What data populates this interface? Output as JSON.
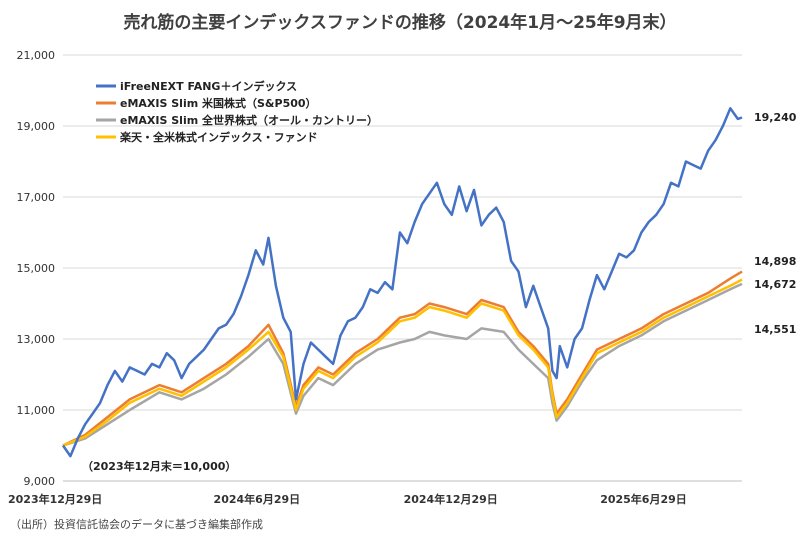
{
  "chart_data": {
    "type": "line",
    "title": "売れ筋の主要インデックスファンドの推移（2024年1月～25年9月末）",
    "ylim": [
      9000,
      21000
    ],
    "yticks": [
      "9,000",
      "11,000",
      "13,000",
      "15,000",
      "17,000",
      "19,000",
      "21,000"
    ],
    "ytick_values": [
      9000,
      11000,
      13000,
      15000,
      17000,
      19000,
      21000
    ],
    "xticks": [
      "2023年12月29日",
      "2024年6月29日",
      "2024年12月29日",
      "2025年6月29日"
    ],
    "xtick_dates": [
      "2023-12-29",
      "2024-06-29",
      "2024-12-29",
      "2025-06-29"
    ],
    "xlim": [
      "2023-12-29",
      "2025-09-30"
    ],
    "grid": "horizontal",
    "legend_position": "top-left",
    "annotation": "（2023年12月末＝10,000）",
    "series": [
      {
        "name": "iFreeNEXT FANG＋インデックス",
        "color": "#4472C4",
        "end_label": "19,240",
        "points": [
          [
            "2023-12-29",
            10000
          ],
          [
            "2024-01-05",
            9700
          ],
          [
            "2024-01-12",
            10200
          ],
          [
            "2024-01-19",
            10600
          ],
          [
            "2024-01-26",
            10900
          ],
          [
            "2024-02-02",
            11200
          ],
          [
            "2024-02-09",
            11700
          ],
          [
            "2024-02-16",
            12100
          ],
          [
            "2024-02-23",
            11800
          ],
          [
            "2024-03-01",
            12200
          ],
          [
            "2024-03-08",
            12100
          ],
          [
            "2024-03-15",
            12000
          ],
          [
            "2024-03-22",
            12300
          ],
          [
            "2024-03-29",
            12200
          ],
          [
            "2024-04-05",
            12600
          ],
          [
            "2024-04-12",
            12400
          ],
          [
            "2024-04-19",
            11900
          ],
          [
            "2024-04-26",
            12300
          ],
          [
            "2024-05-03",
            12500
          ],
          [
            "2024-05-10",
            12700
          ],
          [
            "2024-05-17",
            13000
          ],
          [
            "2024-05-24",
            13300
          ],
          [
            "2024-05-31",
            13400
          ],
          [
            "2024-06-07",
            13700
          ],
          [
            "2024-06-14",
            14200
          ],
          [
            "2024-06-21",
            14800
          ],
          [
            "2024-06-28",
            15500
          ],
          [
            "2024-07-05",
            15100
          ],
          [
            "2024-07-10",
            15850
          ],
          [
            "2024-07-17",
            14500
          ],
          [
            "2024-07-24",
            13600
          ],
          [
            "2024-07-31",
            13200
          ],
          [
            "2024-08-05",
            11300
          ],
          [
            "2024-08-12",
            12300
          ],
          [
            "2024-08-19",
            12900
          ],
          [
            "2024-08-26",
            12700
          ],
          [
            "2024-09-02",
            12500
          ],
          [
            "2024-09-09",
            12300
          ],
          [
            "2024-09-16",
            13100
          ],
          [
            "2024-09-23",
            13500
          ],
          [
            "2024-09-30",
            13600
          ],
          [
            "2024-10-07",
            13900
          ],
          [
            "2024-10-14",
            14400
          ],
          [
            "2024-10-21",
            14300
          ],
          [
            "2024-10-28",
            14600
          ],
          [
            "2024-11-04",
            14400
          ],
          [
            "2024-11-11",
            16000
          ],
          [
            "2024-11-18",
            15700
          ],
          [
            "2024-11-25",
            16300
          ],
          [
            "2024-12-02",
            16800
          ],
          [
            "2024-12-09",
            17100
          ],
          [
            "2024-12-16",
            17400
          ],
          [
            "2024-12-23",
            16800
          ],
          [
            "2024-12-30",
            16500
          ],
          [
            "2025-01-06",
            17300
          ],
          [
            "2025-01-13",
            16600
          ],
          [
            "2025-01-20",
            17200
          ],
          [
            "2025-01-27",
            16200
          ],
          [
            "2025-02-03",
            16500
          ],
          [
            "2025-02-10",
            16700
          ],
          [
            "2025-02-17",
            16300
          ],
          [
            "2025-02-24",
            15200
          ],
          [
            "2025-03-03",
            14900
          ],
          [
            "2025-03-10",
            13900
          ],
          [
            "2025-03-17",
            14500
          ],
          [
            "2025-03-24",
            13900
          ],
          [
            "2025-03-31",
            13300
          ],
          [
            "2025-04-04",
            12100
          ],
          [
            "2025-04-08",
            11900
          ],
          [
            "2025-04-11",
            12800
          ],
          [
            "2025-04-18",
            12200
          ],
          [
            "2025-04-25",
            13000
          ],
          [
            "2025-05-02",
            13300
          ],
          [
            "2025-05-09",
            14100
          ],
          [
            "2025-05-16",
            14800
          ],
          [
            "2025-05-23",
            14400
          ],
          [
            "2025-05-30",
            14900
          ],
          [
            "2025-06-06",
            15400
          ],
          [
            "2025-06-13",
            15300
          ],
          [
            "2025-06-20",
            15500
          ],
          [
            "2025-06-27",
            16000
          ],
          [
            "2025-07-04",
            16300
          ],
          [
            "2025-07-11",
            16500
          ],
          [
            "2025-07-18",
            16800
          ],
          [
            "2025-07-25",
            17400
          ],
          [
            "2025-08-01",
            17300
          ],
          [
            "2025-08-08",
            18000
          ],
          [
            "2025-08-15",
            17900
          ],
          [
            "2025-08-22",
            17800
          ],
          [
            "2025-08-29",
            18300
          ],
          [
            "2025-09-05",
            18600
          ],
          [
            "2025-09-12",
            19000
          ],
          [
            "2025-09-19",
            19500
          ],
          [
            "2025-09-26",
            19200
          ],
          [
            "2025-09-30",
            19240
          ]
        ]
      },
      {
        "name": "eMAXIS Slim 米国株式（S&P500）",
        "color": "#ED7D31",
        "end_label": "14,898",
        "points": [
          [
            "2023-12-29",
            10000
          ],
          [
            "2024-01-19",
            10300
          ],
          [
            "2024-02-09",
            10800
          ],
          [
            "2024-03-01",
            11300
          ],
          [
            "2024-03-29",
            11700
          ],
          [
            "2024-04-19",
            11500
          ],
          [
            "2024-05-10",
            11900
          ],
          [
            "2024-05-31",
            12300
          ],
          [
            "2024-06-21",
            12800
          ],
          [
            "2024-07-10",
            13400
          ],
          [
            "2024-07-24",
            12600
          ],
          [
            "2024-08-05",
            11100
          ],
          [
            "2024-08-12",
            11700
          ],
          [
            "2024-08-26",
            12200
          ],
          [
            "2024-09-09",
            12000
          ],
          [
            "2024-09-30",
            12600
          ],
          [
            "2024-10-21",
            13000
          ],
          [
            "2024-11-11",
            13600
          ],
          [
            "2024-11-25",
            13700
          ],
          [
            "2024-12-09",
            14000
          ],
          [
            "2024-12-23",
            13900
          ],
          [
            "2025-01-13",
            13700
          ],
          [
            "2025-01-27",
            14100
          ],
          [
            "2025-02-17",
            13900
          ],
          [
            "2025-03-03",
            13200
          ],
          [
            "2025-03-17",
            12800
          ],
          [
            "2025-03-31",
            12300
          ],
          [
            "2025-04-04",
            11500
          ],
          [
            "2025-04-08",
            10900
          ],
          [
            "2025-04-18",
            11300
          ],
          [
            "2025-05-02",
            12000
          ],
          [
            "2025-05-16",
            12700
          ],
          [
            "2025-06-06",
            13000
          ],
          [
            "2025-06-27",
            13300
          ],
          [
            "2025-07-18",
            13700
          ],
          [
            "2025-08-08",
            14000
          ],
          [
            "2025-08-29",
            14300
          ],
          [
            "2025-09-19",
            14700
          ],
          [
            "2025-09-30",
            14898
          ]
        ]
      },
      {
        "name": "eMAXIS Slim 全世界株式（オール・カントリー）",
        "color": "#A5A5A5",
        "end_label": "14,551",
        "points": [
          [
            "2023-12-29",
            10000
          ],
          [
            "2024-01-19",
            10200
          ],
          [
            "2024-02-09",
            10600
          ],
          [
            "2024-03-01",
            11000
          ],
          [
            "2024-03-29",
            11500
          ],
          [
            "2024-04-19",
            11300
          ],
          [
            "2024-05-10",
            11600
          ],
          [
            "2024-05-31",
            12000
          ],
          [
            "2024-06-21",
            12500
          ],
          [
            "2024-07-10",
            13000
          ],
          [
            "2024-07-24",
            12300
          ],
          [
            "2024-08-05",
            10900
          ],
          [
            "2024-08-12",
            11400
          ],
          [
            "2024-08-26",
            11900
          ],
          [
            "2024-09-09",
            11700
          ],
          [
            "2024-09-30",
            12300
          ],
          [
            "2024-10-21",
            12700
          ],
          [
            "2024-11-11",
            12900
          ],
          [
            "2024-11-25",
            13000
          ],
          [
            "2024-12-09",
            13200
          ],
          [
            "2024-12-23",
            13100
          ],
          [
            "2025-01-13",
            13000
          ],
          [
            "2025-01-27",
            13300
          ],
          [
            "2025-02-17",
            13200
          ],
          [
            "2025-03-03",
            12700
          ],
          [
            "2025-03-17",
            12300
          ],
          [
            "2025-03-31",
            11900
          ],
          [
            "2025-04-04",
            11200
          ],
          [
            "2025-04-08",
            10700
          ],
          [
            "2025-04-18",
            11100
          ],
          [
            "2025-05-02",
            11800
          ],
          [
            "2025-05-16",
            12400
          ],
          [
            "2025-06-06",
            12800
          ],
          [
            "2025-06-27",
            13100
          ],
          [
            "2025-07-18",
            13500
          ],
          [
            "2025-08-08",
            13800
          ],
          [
            "2025-08-29",
            14100
          ],
          [
            "2025-09-19",
            14400
          ],
          [
            "2025-09-30",
            14551
          ]
        ]
      },
      {
        "name": "楽天・全米株式インデックス・ファンド",
        "color": "#FFC000",
        "end_label": "14,672",
        "points": [
          [
            "2023-12-29",
            10000
          ],
          [
            "2024-01-19",
            10250
          ],
          [
            "2024-02-09",
            10700
          ],
          [
            "2024-03-01",
            11200
          ],
          [
            "2024-03-29",
            11600
          ],
          [
            "2024-04-19",
            11400
          ],
          [
            "2024-05-10",
            11800
          ],
          [
            "2024-05-31",
            12200
          ],
          [
            "2024-06-21",
            12700
          ],
          [
            "2024-07-10",
            13200
          ],
          [
            "2024-07-24",
            12500
          ],
          [
            "2024-08-05",
            11000
          ],
          [
            "2024-08-12",
            11600
          ],
          [
            "2024-08-26",
            12100
          ],
          [
            "2024-09-09",
            11900
          ],
          [
            "2024-09-30",
            12500
          ],
          [
            "2024-10-21",
            12900
          ],
          [
            "2024-11-11",
            13500
          ],
          [
            "2024-11-25",
            13600
          ],
          [
            "2024-12-09",
            13900
          ],
          [
            "2024-12-23",
            13800
          ],
          [
            "2025-01-13",
            13600
          ],
          [
            "2025-01-27",
            14000
          ],
          [
            "2025-02-17",
            13800
          ],
          [
            "2025-03-03",
            13100
          ],
          [
            "2025-03-17",
            12700
          ],
          [
            "2025-03-31",
            12200
          ],
          [
            "2025-04-04",
            11400
          ],
          [
            "2025-04-08",
            10800
          ],
          [
            "2025-04-18",
            11200
          ],
          [
            "2025-05-02",
            11900
          ],
          [
            "2025-05-16",
            12600
          ],
          [
            "2025-06-06",
            12900
          ],
          [
            "2025-06-27",
            13200
          ],
          [
            "2025-07-18",
            13600
          ],
          [
            "2025-08-08",
            13900
          ],
          [
            "2025-08-29",
            14200
          ],
          [
            "2025-09-19",
            14500
          ],
          [
            "2025-09-30",
            14672
          ]
        ]
      }
    ]
  },
  "source": "（出所）投資信託協会のデータに基づき編集部作成"
}
